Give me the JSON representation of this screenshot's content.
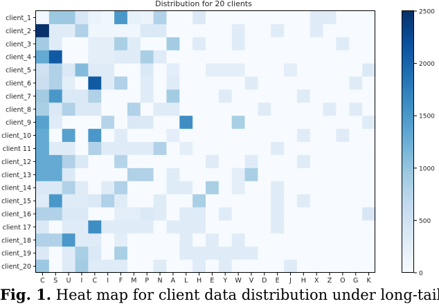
{
  "chart_data": {
    "type": "heatmap",
    "title": "Distribution for 20 clients",
    "rows": [
      "client_1",
      "client_2",
      "client_3",
      "client_4",
      "client_5",
      "client_6",
      "client_7",
      "client_8",
      "client_9",
      "client_10",
      "client 11",
      "client_12",
      "client_13",
      "client_14",
      "client_15",
      "client_16",
      "client 17",
      "client_18",
      "client_19",
      "client_20"
    ],
    "columns": [
      "C",
      "S",
      "U",
      "I",
      "C",
      "I",
      "F",
      "M",
      "P",
      "N",
      "A",
      "L",
      "H",
      "E",
      "Y",
      "W",
      "V",
      "D",
      "E",
      "J",
      "H",
      "X",
      "Z",
      "O",
      "G",
      "K"
    ],
    "colorbar": {
      "min": 0,
      "max": 2500,
      "ticks": [
        0,
        500,
        1000,
        1500,
        2000,
        2500
      ]
    },
    "values": [
      [
        60,
        950,
        950,
        400,
        150,
        100,
        1500,
        200,
        150,
        800,
        0,
        0,
        350,
        0,
        0,
        0,
        0,
        0,
        0,
        0,
        0,
        300,
        300,
        0,
        0,
        0
      ],
      [
        2500,
        300,
        300,
        800,
        100,
        100,
        100,
        100,
        350,
        350,
        0,
        0,
        0,
        0,
        0,
        300,
        0,
        0,
        300,
        0,
        0,
        300,
        0,
        0,
        0,
        0
      ],
      [
        900,
        300,
        0,
        0,
        250,
        250,
        850,
        300,
        0,
        0,
        900,
        0,
        300,
        0,
        0,
        300,
        0,
        0,
        0,
        0,
        0,
        0,
        0,
        300,
        0,
        0
      ],
      [
        1300,
        2100,
        0,
        0,
        250,
        250,
        300,
        300,
        850,
        300,
        0,
        0,
        0,
        0,
        0,
        0,
        0,
        0,
        0,
        0,
        0,
        0,
        0,
        0,
        0,
        0
      ],
      [
        500,
        800,
        350,
        1100,
        300,
        300,
        0,
        0,
        350,
        0,
        250,
        0,
        0,
        250,
        250,
        250,
        0,
        0,
        0,
        250,
        0,
        0,
        0,
        0,
        0,
        350
      ],
      [
        550,
        800,
        250,
        0,
        2100,
        300,
        800,
        0,
        300,
        0,
        300,
        0,
        0,
        0,
        0,
        0,
        300,
        0,
        0,
        0,
        0,
        0,
        0,
        0,
        300,
        0
      ],
      [
        900,
        1500,
        350,
        350,
        800,
        0,
        0,
        0,
        300,
        0,
        900,
        0,
        0,
        0,
        300,
        0,
        0,
        0,
        0,
        0,
        300,
        0,
        0,
        0,
        0,
        0
      ],
      [
        850,
        350,
        800,
        350,
        350,
        0,
        0,
        800,
        0,
        300,
        300,
        0,
        0,
        0,
        0,
        0,
        0,
        300,
        0,
        0,
        0,
        0,
        300,
        0,
        300,
        0
      ],
      [
        1400,
        300,
        0,
        0,
        0,
        750,
        0,
        350,
        350,
        0,
        0,
        1600,
        0,
        0,
        0,
        850,
        0,
        0,
        0,
        0,
        0,
        0,
        0,
        0,
        0,
        300
      ],
      [
        1300,
        0,
        1400,
        0,
        1500,
        0,
        300,
        0,
        0,
        0,
        250,
        0,
        0,
        0,
        0,
        0,
        0,
        0,
        0,
        0,
        300,
        0,
        0,
        300,
        0,
        0
      ],
      [
        1300,
        300,
        300,
        0,
        800,
        300,
        300,
        300,
        300,
        800,
        0,
        250,
        0,
        0,
        0,
        0,
        0,
        0,
        300,
        0,
        0,
        0,
        0,
        0,
        0,
        0
      ],
      [
        1300,
        1300,
        800,
        350,
        0,
        0,
        750,
        0,
        0,
        0,
        0,
        0,
        0,
        300,
        0,
        0,
        300,
        0,
        0,
        0,
        300,
        0,
        0,
        0,
        0,
        0
      ],
      [
        1300,
        1300,
        350,
        0,
        0,
        0,
        0,
        800,
        800,
        0,
        300,
        0,
        0,
        0,
        0,
        250,
        850,
        0,
        0,
        0,
        0,
        0,
        0,
        0,
        0,
        0
      ],
      [
        350,
        350,
        800,
        300,
        0,
        300,
        800,
        0,
        0,
        0,
        300,
        300,
        0,
        850,
        0,
        250,
        0,
        0,
        300,
        0,
        0,
        0,
        0,
        0,
        0,
        0
      ],
      [
        300,
        1500,
        300,
        300,
        350,
        800,
        300,
        0,
        0,
        300,
        0,
        0,
        850,
        0,
        0,
        0,
        0,
        0,
        300,
        0,
        300,
        0,
        0,
        0,
        0,
        0
      ],
      [
        800,
        800,
        350,
        350,
        0,
        0,
        250,
        250,
        350,
        300,
        0,
        300,
        300,
        0,
        300,
        0,
        0,
        0,
        300,
        0,
        0,
        0,
        0,
        0,
        0,
        400
      ],
      [
        350,
        0,
        300,
        300,
        1600,
        300,
        300,
        300,
        300,
        0,
        300,
        300,
        300,
        0,
        0,
        0,
        0,
        0,
        300,
        0,
        0,
        0,
        0,
        0,
        0,
        0
      ],
      [
        800,
        800,
        1500,
        300,
        300,
        0,
        250,
        0,
        0,
        0,
        0,
        300,
        0,
        300,
        0,
        300,
        0,
        0,
        0,
        0,
        0,
        0,
        0,
        0,
        0,
        0
      ],
      [
        350,
        0,
        300,
        850,
        350,
        0,
        850,
        0,
        0,
        0,
        0,
        300,
        300,
        300,
        300,
        300,
        300,
        0,
        0,
        0,
        0,
        0,
        0,
        0,
        0,
        0
      ],
      [
        950,
        0,
        300,
        900,
        300,
        300,
        300,
        0,
        0,
        300,
        0,
        0,
        300,
        0,
        300,
        0,
        0,
        0,
        0,
        300,
        0,
        0,
        0,
        0,
        0,
        0
      ]
    ]
  },
  "caption": {
    "label": "Fig. 1.",
    "text": " Heat map for client data distribution under long-tail"
  }
}
